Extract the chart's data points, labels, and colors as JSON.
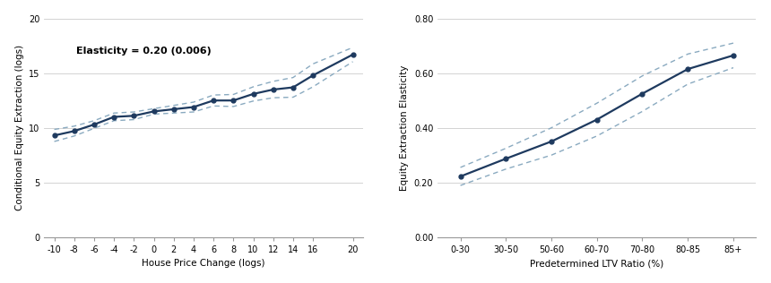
{
  "left": {
    "x": [
      -10,
      -8,
      -6,
      -4,
      -2,
      0,
      2,
      4,
      6,
      8,
      10,
      12,
      14,
      16,
      20
    ],
    "y": [
      9.3,
      9.7,
      10.3,
      11.0,
      11.1,
      11.5,
      11.7,
      11.9,
      12.5,
      12.5,
      13.1,
      13.5,
      13.7,
      14.8,
      16.7
    ],
    "y_upper": [
      9.85,
      10.15,
      10.65,
      11.35,
      11.45,
      11.75,
      12.05,
      12.35,
      13.0,
      13.05,
      13.75,
      14.25,
      14.6,
      15.85,
      17.35
    ],
    "y_lower": [
      8.75,
      9.25,
      9.95,
      10.65,
      10.75,
      11.25,
      11.35,
      11.45,
      12.0,
      11.95,
      12.45,
      12.75,
      12.8,
      13.75,
      16.05
    ],
    "xlabel": "House Price Change (logs)",
    "ylabel": "Conditional Equity Extraction (logs)",
    "annotation": "Elasticity = 0.20 (0.006)",
    "xlim": [
      -11,
      21
    ],
    "ylim": [
      0,
      20
    ],
    "xticks": [
      -10,
      -8,
      -6,
      -4,
      -2,
      0,
      2,
      4,
      6,
      8,
      10,
      12,
      14,
      16,
      20
    ],
    "yticks": [
      0,
      5,
      10,
      15,
      20
    ]
  },
  "right": {
    "x": [
      0,
      1,
      2,
      3,
      4,
      5,
      6
    ],
    "y": [
      0.222,
      0.287,
      0.35,
      0.43,
      0.525,
      0.615,
      0.665
    ],
    "y_upper": [
      0.255,
      0.325,
      0.4,
      0.49,
      0.59,
      0.67,
      0.71
    ],
    "y_lower": [
      0.189,
      0.249,
      0.3,
      0.37,
      0.46,
      0.56,
      0.62
    ],
    "xlabel": "Predetermined LTV Ratio (%)",
    "ylabel": "Equity Extraction Elasticity",
    "xlabels": [
      "0-30",
      "30-50",
      "50-60",
      "60-70",
      "70-80",
      "80-85",
      "85+"
    ],
    "xlim": [
      -0.5,
      6.5
    ],
    "ylim": [
      0.0,
      0.8
    ],
    "yticks": [
      0.0,
      0.2,
      0.4,
      0.6,
      0.8
    ]
  },
  "line_color": "#1e3a5f",
  "ci_color": "#8aaac0",
  "marker": "o",
  "markersize": 3.5,
  "linewidth": 1.6,
  "ci_linewidth": 1.0,
  "fontsize_label": 7.5,
  "fontsize_tick": 7.0,
  "fontsize_annot": 8.0,
  "grid_color": "#cccccc",
  "spine_color": "#999999"
}
